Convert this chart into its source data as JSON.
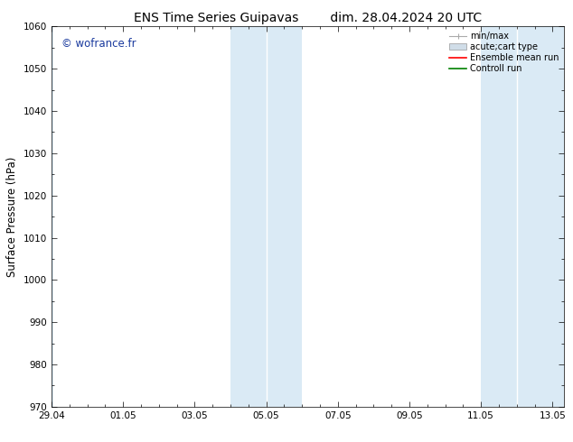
{
  "title": "ENS Time Series Guipavas        dim. 28.04.2024 20 UTC",
  "ylabel": "Surface Pressure (hPa)",
  "ylim": [
    970,
    1060
  ],
  "yticks": [
    970,
    980,
    990,
    1000,
    1010,
    1020,
    1030,
    1040,
    1050,
    1060
  ],
  "xlim": [
    0,
    14.333
  ],
  "xtick_positions": [
    0,
    2,
    4,
    6,
    8,
    10,
    12,
    14
  ],
  "xtick_labels": [
    "29.04",
    "01.05",
    "03.05",
    "05.05",
    "07.05",
    "09.05",
    "11.05",
    "13.05"
  ],
  "shaded_bands": [
    {
      "start_day": 5.0,
      "end_day": 6.0
    },
    {
      "start_day": 6.0,
      "end_day": 7.0
    },
    {
      "start_day": 12.0,
      "end_day": 13.0
    },
    {
      "start_day": 13.0,
      "end_day": 14.333
    }
  ],
  "shade_color": "#daeaf5",
  "shade_separator_color": "#c5dff0",
  "watermark": "© wofrance.fr",
  "watermark_color": "#1a3a9e",
  "legend_labels": [
    "min/max",
    "acute;cart type",
    "Ensemble mean run",
    "Controll run"
  ],
  "legend_colors": [
    "#aaaaaa",
    "#cccccc",
    "#ff0000",
    "#008000"
  ],
  "background_color": "#ffffff",
  "title_fontsize": 10,
  "tick_fontsize": 7.5,
  "ylabel_fontsize": 8.5,
  "legend_fontsize": 7
}
